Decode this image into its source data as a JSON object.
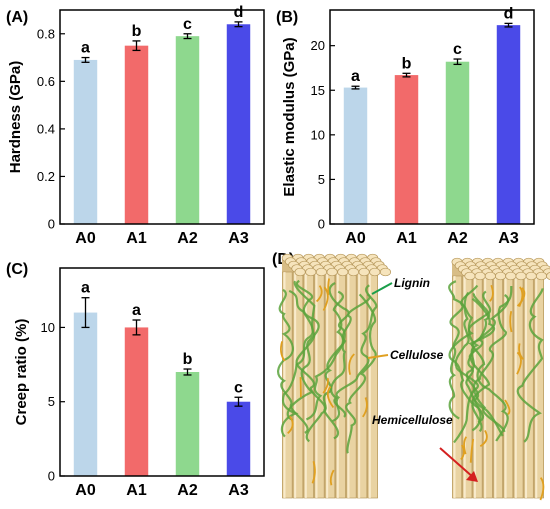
{
  "chart_data": [
    {
      "type": "bar",
      "panel_label": "(A)",
      "categories": [
        "A0",
        "A1",
        "A2",
        "A3"
      ],
      "values": [
        0.69,
        0.75,
        0.79,
        0.84
      ],
      "errors": [
        0.01,
        0.02,
        0.01,
        0.01
      ],
      "significance": [
        "a",
        "b",
        "c",
        "d"
      ],
      "ylabel": "Hardness (GPa)",
      "ylim": [
        0,
        0.9
      ],
      "yticks": [
        0,
        0.2,
        0.4,
        0.6,
        0.8
      ],
      "ytick_labels": [
        "0",
        "0.2",
        "0.4",
        "0.6",
        "0.8"
      ],
      "colors": [
        "#bcd6ea",
        "#f26a6a",
        "#8ed88e",
        "#4a4ae8"
      ]
    },
    {
      "type": "bar",
      "panel_label": "(B)",
      "categories": [
        "A0",
        "A1",
        "A2",
        "A3"
      ],
      "values": [
        15.3,
        16.7,
        18.2,
        22.3
      ],
      "errors": [
        0.15,
        0.2,
        0.3,
        0.2
      ],
      "significance": [
        "a",
        "b",
        "c",
        "d"
      ],
      "ylabel": "Elastic modulus (GPa)",
      "ylim": [
        0,
        24
      ],
      "yticks": [
        0,
        5,
        10,
        15,
        20
      ],
      "ytick_labels": [
        "0",
        "5",
        "10",
        "15",
        "20"
      ],
      "colors": [
        "#bcd6ea",
        "#f26a6a",
        "#8ed88e",
        "#4a4ae8"
      ]
    },
    {
      "type": "bar",
      "panel_label": "(C)",
      "categories": [
        "A0",
        "A1",
        "A2",
        "A3"
      ],
      "values": [
        11.0,
        10.0,
        7.0,
        5.0
      ],
      "errors": [
        1.0,
        0.5,
        0.2,
        0.3
      ],
      "significance": [
        "a",
        "a",
        "b",
        "c"
      ],
      "ylabel": "Creep ratio (%)",
      "ylim": [
        0,
        14
      ],
      "yticks": [
        0,
        5,
        10
      ],
      "ytick_labels": [
        "0",
        "5",
        "10"
      ],
      "colors": [
        "#bcd6ea",
        "#f26a6a",
        "#8ed88e",
        "#4a4ae8"
      ]
    }
  ],
  "diagram": {
    "panel_label": "(D)",
    "labels": {
      "lignin": "Lignin",
      "cellulose": "Cellulose",
      "hemicellulose": "Hemicellulose"
    },
    "colors": {
      "fiber": "#e9d3a2",
      "fiber_edge": "#b89a5e",
      "lignin": "#5aa33c",
      "hemicellulose": "#e0a020",
      "arrow_green": "#1a9e4a",
      "arrow_orange": "#e0a020",
      "arrow_red": "#d42020"
    }
  }
}
